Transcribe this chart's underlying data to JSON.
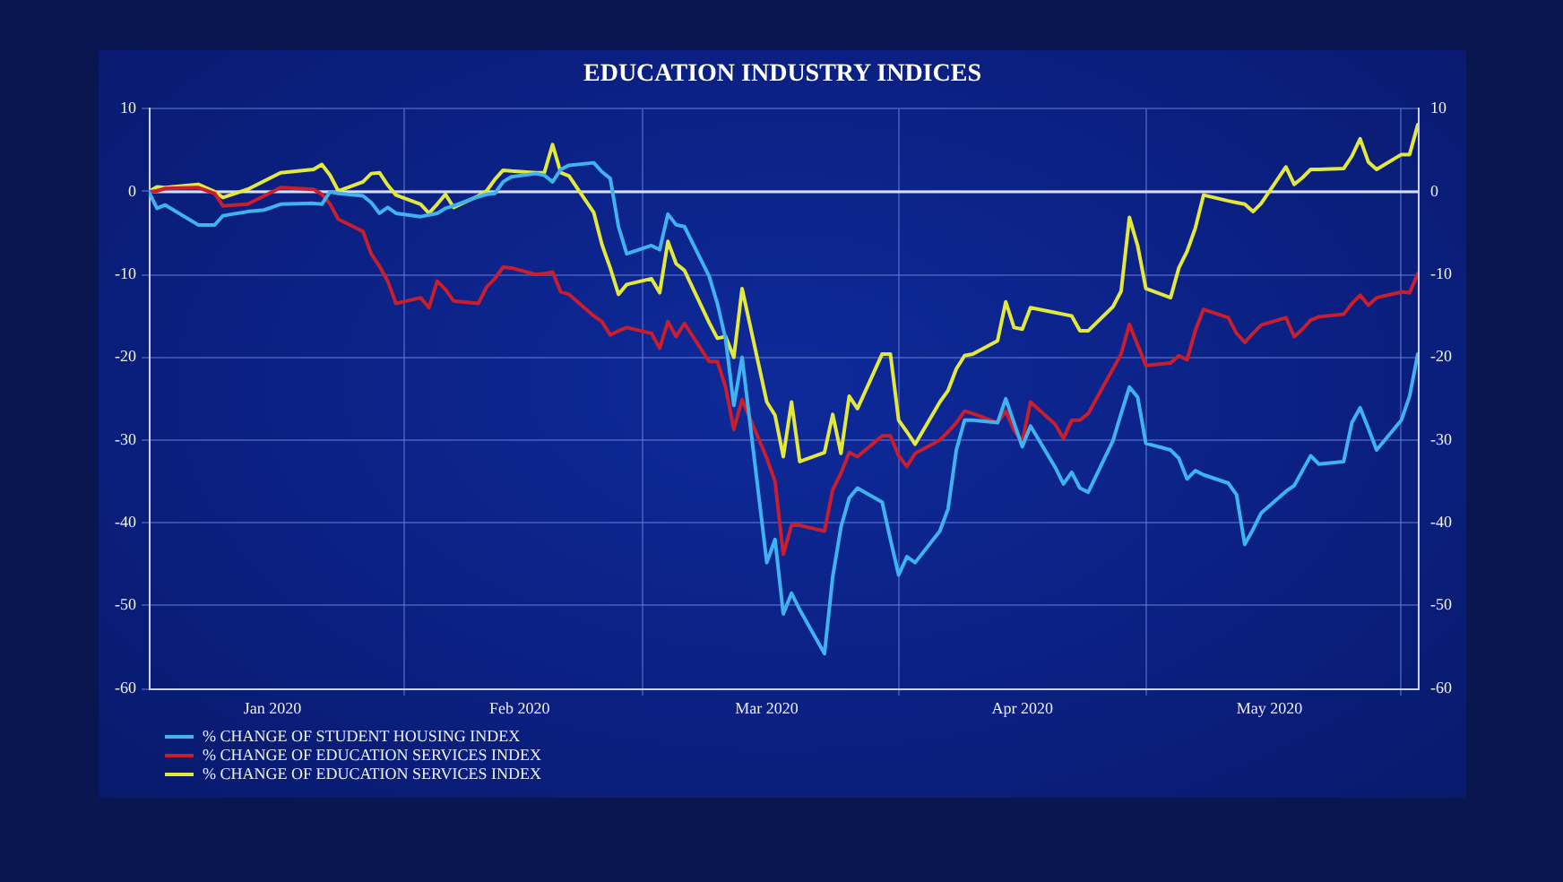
{
  "chart_data": {
    "type": "line",
    "title": "EDUCATION INDUSTRY INDICES",
    "x": [
      "2020-01-01",
      "2020-01-02",
      "2020-01-03",
      "2020-01-07",
      "2020-01-09",
      "2020-01-10",
      "2020-01-13",
      "2020-01-15",
      "2020-01-17",
      "2020-01-21",
      "2020-01-22",
      "2020-01-23",
      "2020-01-24",
      "2020-01-27",
      "2020-01-28",
      "2020-01-29",
      "2020-01-30",
      "2020-01-31",
      "2020-02-03",
      "2020-02-04",
      "2020-02-05",
      "2020-02-06",
      "2020-02-07",
      "2020-02-10",
      "2020-02-11",
      "2020-02-12",
      "2020-02-13",
      "2020-02-14",
      "2020-02-17",
      "2020-02-18",
      "2020-02-19",
      "2020-02-20",
      "2020-02-21",
      "2020-02-24",
      "2020-02-25",
      "2020-02-26",
      "2020-02-27",
      "2020-02-28",
      "2020-03-02",
      "2020-03-03",
      "2020-03-04",
      "2020-03-05",
      "2020-03-06",
      "2020-03-09",
      "2020-03-10",
      "2020-03-11",
      "2020-03-12",
      "2020-03-13",
      "2020-03-16",
      "2020-03-17",
      "2020-03-18",
      "2020-03-19",
      "2020-03-20",
      "2020-03-23",
      "2020-03-24",
      "2020-03-25",
      "2020-03-26",
      "2020-03-27",
      "2020-03-30",
      "2020-03-31",
      "2020-04-01",
      "2020-04-02",
      "2020-04-03",
      "2020-04-06",
      "2020-04-07",
      "2020-04-08",
      "2020-04-09",
      "2020-04-10",
      "2020-04-13",
      "2020-04-14",
      "2020-04-15",
      "2020-04-16",
      "2020-04-17",
      "2020-04-20",
      "2020-04-21",
      "2020-04-22",
      "2020-04-23",
      "2020-04-24",
      "2020-04-27",
      "2020-04-28",
      "2020-04-29",
      "2020-04-30",
      "2020-05-01",
      "2020-05-04",
      "2020-05-05",
      "2020-05-06",
      "2020-05-07",
      "2020-05-08",
      "2020-05-11",
      "2020-05-12",
      "2020-05-13",
      "2020-05-14",
      "2020-05-15",
      "2020-05-18",
      "2020-05-19",
      "2020-05-20",
      "2020-05-21",
      "2020-05-22",
      "2020-05-25",
      "2020-05-26",
      "2020-05-27",
      "2020-05-28",
      "2020-05-29",
      "2020-06-01",
      "2020-06-02",
      "2020-06-03"
    ],
    "series": [
      {
        "name": "% CHANGE OF STUDENT HOUSING INDEX",
        "color": "#3fb2f0",
        "values": [
          0,
          -2.0,
          -1.6,
          -4.0,
          -4.0,
          -2.9,
          -2.4,
          -2.2,
          -1.5,
          -1.4,
          -1.5,
          0.0,
          -0.2,
          -0.5,
          -1.3,
          -2.6,
          -1.9,
          -2.6,
          -3.0,
          -2.8,
          -2.6,
          -2.0,
          -1.7,
          -0.6,
          -0.3,
          -0.2,
          1.2,
          1.8,
          2.2,
          2.0,
          1.2,
          2.7,
          3.2,
          3.5,
          2.4,
          1.6,
          -4.2,
          -7.5,
          -6.5,
          -7.0,
          -2.7,
          -4.0,
          -4.2,
          -10.2,
          -13.5,
          -17.8,
          -25.8,
          -20.0,
          -44.8,
          -42.0,
          -51.0,
          -48.5,
          -50.5,
          -55.8,
          -46.5,
          -40.5,
          -37.0,
          -35.8,
          -37.5,
          -42.0,
          -46.3,
          -44.1,
          -44.8,
          -41.0,
          -38.3,
          -31.2,
          -27.6,
          -27.6,
          -27.9,
          -25.0,
          -27.9,
          -30.8,
          -28.3,
          -33.3,
          -35.3,
          -33.9,
          -35.8,
          -36.3,
          -30.1,
          -26.8,
          -23.6,
          -24.8,
          -30.4,
          -31.2,
          -32.2,
          -34.7,
          -33.7,
          -34.2,
          -35.2,
          -36.6,
          -42.6,
          -40.8,
          -38.8,
          -36.2,
          -35.5,
          -33.7,
          -31.9,
          -32.9,
          -32.6,
          -27.9,
          -26.1,
          -28.6,
          -31.2,
          -27.6,
          -24.7,
          -19.6
        ]
      },
      {
        "name": "% CHANGE OF EDUCATION SERVICES INDEX",
        "color": "#c81e2d",
        "values": [
          0,
          0.1,
          0.4,
          0.5,
          -0.2,
          -1.7,
          -1.5,
          -0.5,
          0.5,
          0.3,
          -0.3,
          -1.5,
          -3.3,
          -4.8,
          -7.5,
          -9.0,
          -10.8,
          -13.5,
          -12.8,
          -14.0,
          -10.8,
          -11.8,
          -13.2,
          -13.5,
          -11.5,
          -10.5,
          -9.1,
          -9.2,
          -10.0,
          -9.9,
          -9.7,
          -12.1,
          -12.4,
          -15.0,
          -15.7,
          -17.3,
          -16.8,
          -16.4,
          -17.1,
          -18.9,
          -15.7,
          -17.5,
          -15.9,
          -20.5,
          -20.5,
          -23.6,
          -28.7,
          -25.1,
          -32.2,
          -35.0,
          -43.8,
          -40.3,
          -40.3,
          -41.0,
          -36.0,
          -34.0,
          -31.5,
          -32.0,
          -29.5,
          -29.5,
          -31.9,
          -33.2,
          -31.6,
          -30.0,
          -29.0,
          -27.9,
          -26.5,
          -26.8,
          -27.9,
          -26.5,
          -28.8,
          -30.2,
          -25.4,
          -28.1,
          -29.8,
          -27.6,
          -27.6,
          -26.8,
          -21.4,
          -19.6,
          -16.0,
          -18.5,
          -21.0,
          -20.7,
          -19.8,
          -20.3,
          -16.8,
          -14.2,
          -15.2,
          -17.1,
          -18.2,
          -17.1,
          -16.1,
          -15.2,
          -17.5,
          -16.6,
          -15.5,
          -15.1,
          -14.8,
          -13.5,
          -12.5,
          -13.7,
          -12.8,
          -12.1,
          -12.2,
          -9.9
        ]
      },
      {
        "name": "% CHANGE OF EDUCATION SERVICES INDEX",
        "color": "#e3e83e",
        "values": [
          0,
          0.6,
          0.5,
          0.9,
          0.0,
          -0.7,
          0.3,
          1.3,
          2.3,
          2.7,
          3.3,
          2.0,
          0.1,
          1.2,
          2.2,
          2.3,
          0.8,
          -0.4,
          -1.5,
          -2.6,
          -1.5,
          -0.3,
          -1.9,
          -0.5,
          0.1,
          1.5,
          2.6,
          2.5,
          2.3,
          2.3,
          5.7,
          2.3,
          1.9,
          -2.5,
          -6.4,
          -9.2,
          -12.4,
          -11.2,
          -10.5,
          -12.2,
          -6.0,
          -8.7,
          -9.5,
          -15.8,
          -17.7,
          -17.5,
          -20.0,
          -11.7,
          -25.4,
          -27.0,
          -32.0,
          -25.4,
          -32.6,
          -31.5,
          -26.9,
          -31.6,
          -24.7,
          -26.2,
          -19.6,
          -19.6,
          -27.6,
          -29.0,
          -30.5,
          -25.4,
          -24.0,
          -21.4,
          -19.8,
          -19.6,
          -18.0,
          -13.3,
          -16.4,
          -16.6,
          -14.0,
          -14.6,
          -14.8,
          -15.0,
          -16.8,
          -16.8,
          -13.9,
          -12.0,
          -3.1,
          -6.5,
          -11.7,
          -12.8,
          -9.2,
          -7.2,
          -4.4,
          -0.4,
          -1.1,
          -1.3,
          -1.5,
          -2.4,
          -1.4,
          3.0,
          0.9,
          1.7,
          2.7,
          2.7,
          2.8,
          4.3,
          6.4,
          3.6,
          2.7,
          4.5,
          4.5,
          8.1
        ]
      }
    ],
    "xlim": [
      "2020-01-01",
      "2020-06-03"
    ],
    "xticks": [
      {
        "value": "2020-01-16",
        "label": "Jan 2020"
      },
      {
        "value": "2020-02-01",
        "label": null
      },
      {
        "value": "2020-02-15",
        "label": "Feb 2020"
      },
      {
        "value": "2020-03-01",
        "label": null
      },
      {
        "value": "2020-03-16",
        "label": "Mar 2020"
      },
      {
        "value": "2020-04-01",
        "label": null
      },
      {
        "value": "2020-04-16",
        "label": "Apr 2020"
      },
      {
        "value": "2020-05-01",
        "label": null
      },
      {
        "value": "2020-05-16",
        "label": "May 2020"
      },
      {
        "value": "2020-06-01",
        "label": null
      }
    ],
    "ylim": [
      -60,
      10
    ],
    "yticks": [
      -60,
      -50,
      -40,
      -30,
      -20,
      -10,
      0,
      10
    ],
    "y2lim": [
      -60,
      10
    ],
    "y2ticks": [
      -60,
      -50,
      -40,
      -30,
      -20,
      -10,
      0,
      10
    ],
    "ref_lines": [
      {
        "axis": "y",
        "value": 0,
        "color": "#d8def5"
      }
    ],
    "grid": true,
    "legend": "bottom left"
  }
}
